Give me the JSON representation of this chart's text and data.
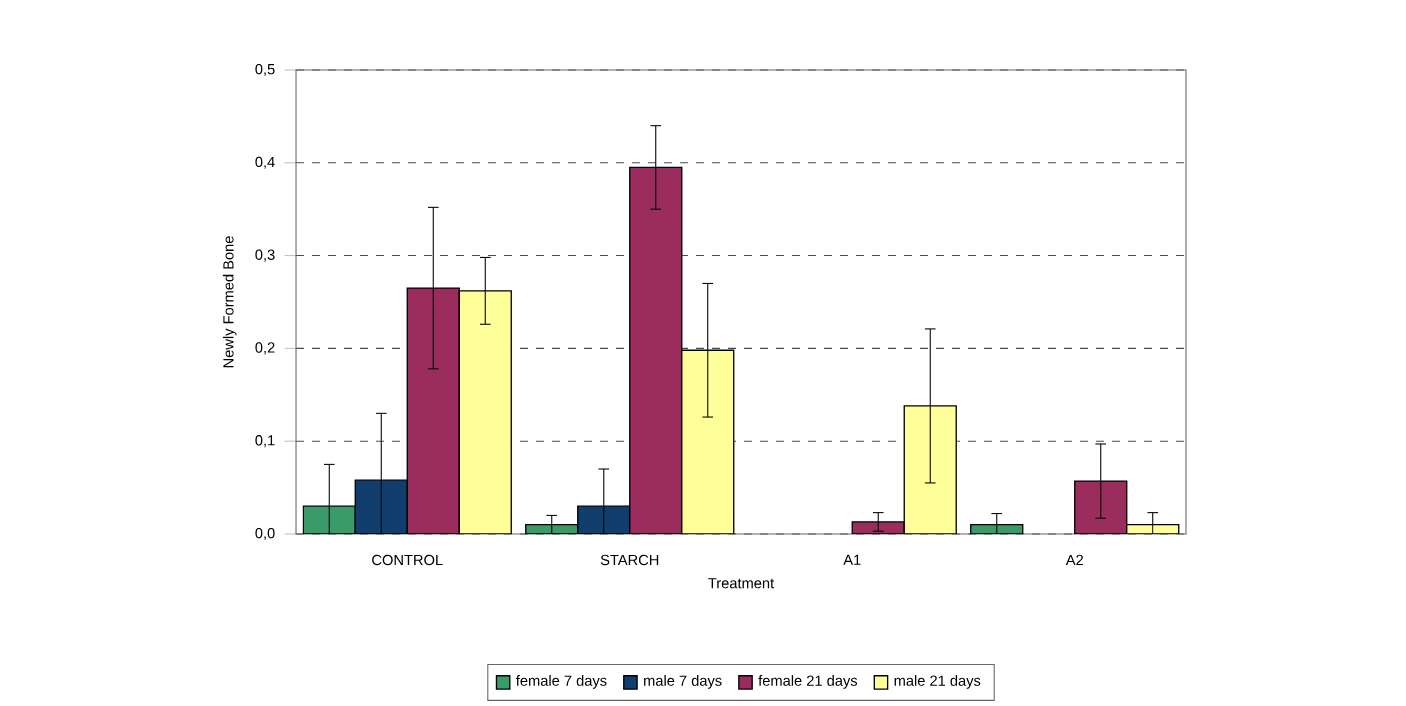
{
  "chart_data": {
    "type": "bar",
    "xlabel": "Treatment",
    "ylabel": "Newly Formed Bone",
    "categories": [
      "CONTROL",
      "STARCH",
      "A1",
      "A2"
    ],
    "series": [
      {
        "name": "female 7 days",
        "color": "#3a9a6a",
        "values": [
          0.03,
          0.01,
          null,
          0.01
        ],
        "errors": [
          0.045,
          0.01,
          null,
          0.012
        ]
      },
      {
        "name": "male 7 days",
        "color": "#123e6e",
        "values": [
          0.058,
          0.03,
          null,
          null
        ],
        "errors": [
          0.072,
          0.04,
          null,
          null
        ]
      },
      {
        "name": "female 21 days",
        "color": "#9b2c5e",
        "values": [
          0.265,
          0.395,
          0.013,
          0.057
        ],
        "errors": [
          0.087,
          0.045,
          0.01,
          0.04
        ]
      },
      {
        "name": "male 21 days",
        "color": "#ffff99",
        "values": [
          0.262,
          0.198,
          0.138,
          0.01
        ],
        "errors": [
          0.036,
          0.072,
          0.083,
          0.013
        ]
      }
    ],
    "ylim": [
      0,
      0.5
    ],
    "yticks": [
      {
        "value": 0,
        "label": "0,0"
      },
      {
        "value": 0.1,
        "label": "0,1"
      },
      {
        "value": 0.2,
        "label": "0,2"
      },
      {
        "value": 0.3,
        "label": "0,3"
      },
      {
        "value": 0.4,
        "label": "0,4"
      },
      {
        "value": 0.5,
        "label": "0,5"
      }
    ],
    "grid": "y",
    "legend": "bottom"
  }
}
